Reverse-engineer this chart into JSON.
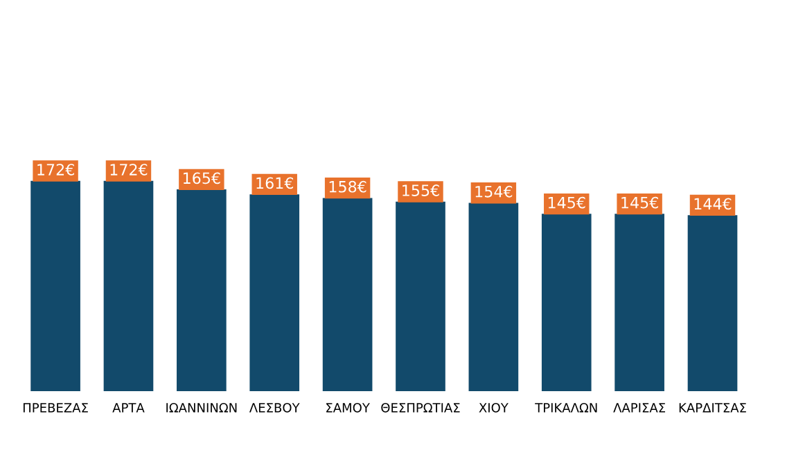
{
  "chart_data": {
    "type": "bar",
    "categories": [
      "ΠΡΕΒΕΖΑΣ",
      "ΑΡΤΑ",
      "ΙΩΑΝΝΙΝΩΝ",
      "ΛΕΣΒΟΥ",
      "ΣΑΜΟΥ",
      "ΘΕΣΠΡΩΤΙΑΣ",
      "ΧΙΟΥ",
      "ΤΡΙΚΑΛΩΝ",
      "ΛΑΡΙΣΑΣ",
      "ΚΑΡΔΙΤΣΑΣ"
    ],
    "values": [
      172,
      172,
      165,
      161,
      158,
      155,
      154,
      145,
      145,
      144
    ],
    "value_labels": [
      "172€",
      "172€",
      "165€",
      "161€",
      "158€",
      "155€",
      "154€",
      "145€",
      "145€",
      "144€"
    ],
    "color": "#124a6b",
    "grid": false,
    "legend": false
  }
}
